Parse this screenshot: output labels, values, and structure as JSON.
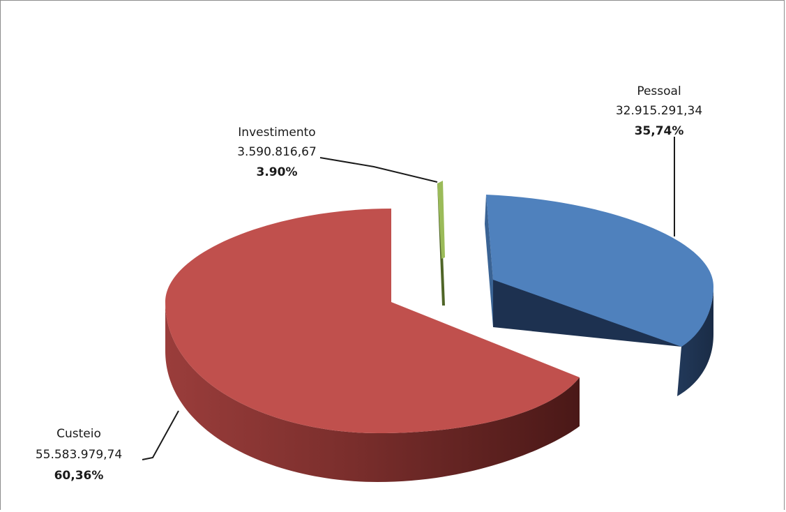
{
  "chart_data": {
    "type": "pie",
    "title": "",
    "slices": [
      {
        "name": "Pessoal",
        "value_text": "32.915.291,34",
        "value": 32915291.34,
        "percent_text": "35,74%",
        "percent": 35.74,
        "color": "#4f81bd",
        "side_color": "#1f3550"
      },
      {
        "name": "Custeio",
        "value_text": "55.583.979,74",
        "value": 55583979.74,
        "percent_text": "60,36%",
        "percent": 60.36,
        "color": "#c0504d",
        "side_color": "#6e2523"
      },
      {
        "name": "Investimento",
        "value_text": "3.590.816,67",
        "value": 3590816.67,
        "percent_text": "3.90%",
        "percent": 3.9,
        "color": "#9bbb59",
        "side_color": "#4f6527"
      }
    ],
    "exploded": true,
    "three_d": true,
    "legend": "none"
  }
}
